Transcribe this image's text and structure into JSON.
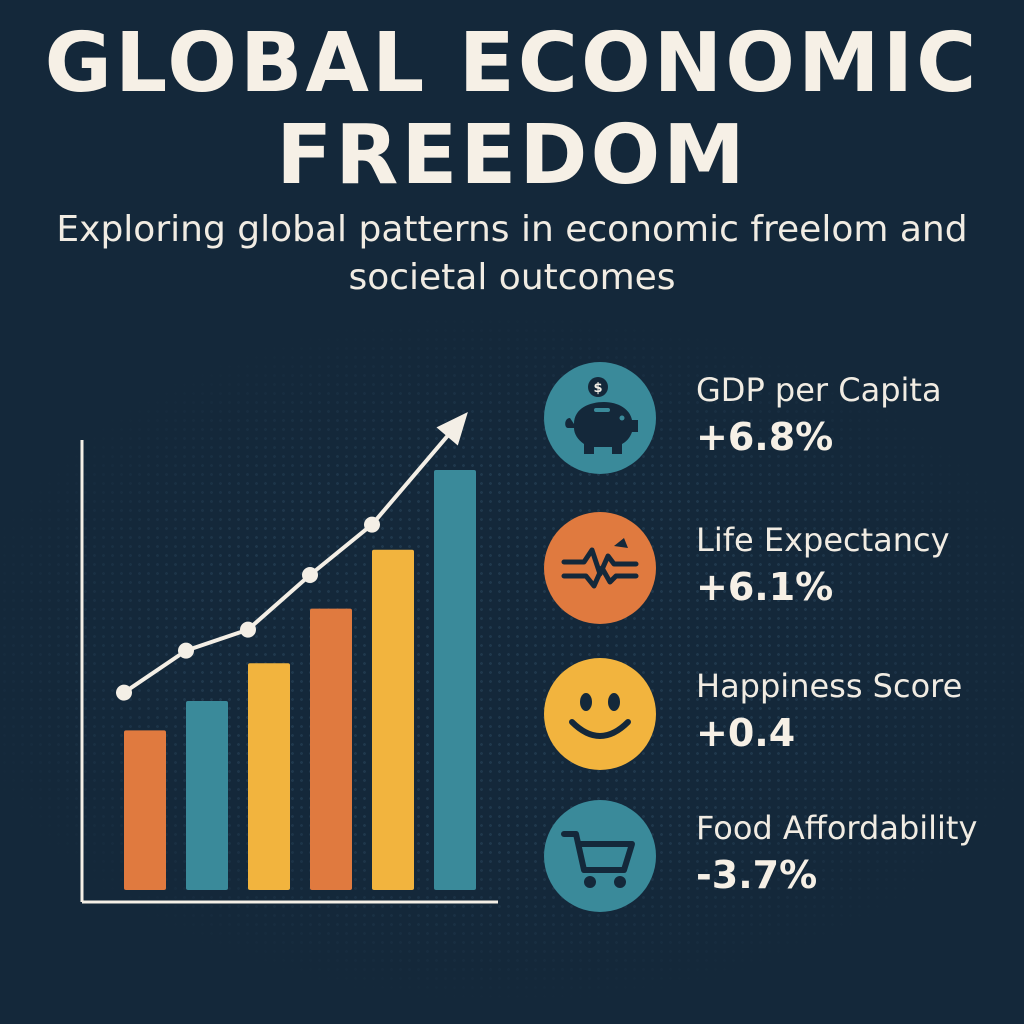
{
  "header": {
    "title": "GLOBAL ECONOMIC FREEDOM",
    "subtitle": "Exploring global patterns in economic freelom and societal outcomes"
  },
  "colors": {
    "background": "#14283a",
    "orange": "#e07a3f",
    "teal": "#3a8a9a",
    "yellow": "#f2b43e",
    "cream": "#f4efe6"
  },
  "chart_data": {
    "type": "bar",
    "title": "",
    "xlabel": "",
    "ylabel": "",
    "ylim": [
      0,
      100
    ],
    "bars": [
      {
        "value": 38,
        "color": "orange"
      },
      {
        "value": 45,
        "color": "teal"
      },
      {
        "value": 54,
        "color": "yellow"
      },
      {
        "value": 67,
        "color": "orange"
      },
      {
        "value": 81,
        "color": "yellow"
      },
      {
        "value": 100,
        "color": "teal"
      }
    ],
    "trend_line": {
      "points": [
        47,
        57,
        62,
        75,
        87
      ],
      "arrow": true
    }
  },
  "metrics": [
    {
      "label": "GDP per Capita",
      "value": "+6.8%",
      "icon": "piggy-bank-icon",
      "color": "#3a8a9a",
      "coin_symbol": "$"
    },
    {
      "label": "Life Expectancy",
      "value": "+6.1%",
      "icon": "heartbeat-icon",
      "color": "#e07a3f"
    },
    {
      "label": "Happiness Score",
      "value": "+0.4",
      "icon": "smiley-icon",
      "color": "#f2b43e"
    },
    {
      "label": "Food Affordability",
      "value": "-3.7%",
      "icon": "shopping-cart-icon",
      "color": "#3a8a9a"
    }
  ]
}
